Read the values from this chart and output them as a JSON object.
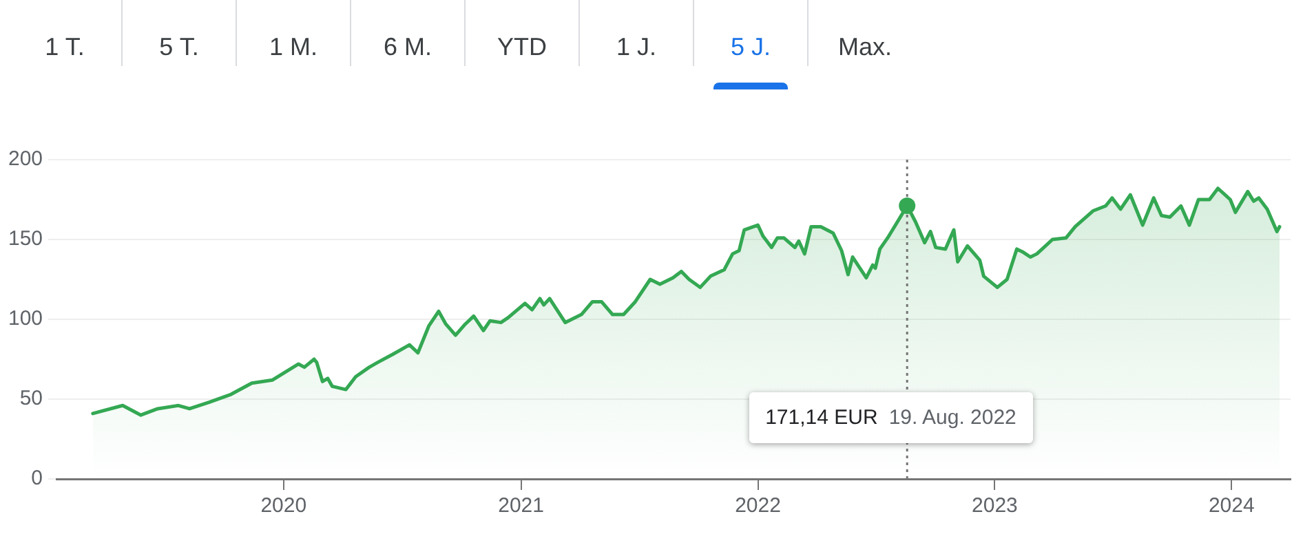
{
  "chart_data": {
    "type": "area",
    "x": [
      "2019-03-13",
      "2019-04-28",
      "2019-05-26",
      "2019-06-21",
      "2019-07-23",
      "2019-08-09",
      "2019-09-08",
      "2019-10-12",
      "2019-11-13",
      "2019-12-15",
      "2020-01-24",
      "2020-02-02",
      "2020-02-17",
      "2020-02-21",
      "2020-03-01",
      "2020-03-09",
      "2020-03-16",
      "2020-04-06",
      "2020-04-21",
      "2020-05-12",
      "2020-05-25",
      "2020-06-17",
      "2020-07-13",
      "2020-07-26",
      "2020-08-12",
      "2020-08-27",
      "2020-09-07",
      "2020-09-22",
      "2020-10-07",
      "2020-10-20",
      "2020-11-04",
      "2020-11-14",
      "2020-12-01",
      "2020-12-12",
      "2021-01-07",
      "2021-01-18",
      "2021-01-30",
      "2021-02-05",
      "2021-02-14",
      "2021-03-10",
      "2021-04-04",
      "2021-04-21",
      "2021-05-05",
      "2021-05-22",
      "2021-06-08",
      "2021-06-26",
      "2021-07-19",
      "2021-08-03",
      "2021-08-23",
      "2021-09-05",
      "2021-09-17",
      "2021-10-04",
      "2021-10-20",
      "2021-11-10",
      "2021-11-23",
      "2021-12-03",
      "2021-12-11",
      "2022-01-01",
      "2022-01-09",
      "2022-01-22",
      "2022-01-31",
      "2022-02-10",
      "2022-02-27",
      "2022-03-05",
      "2022-03-14",
      "2022-03-24",
      "2022-04-08",
      "2022-04-27",
      "2022-05-10",
      "2022-05-20",
      "2022-05-27",
      "2022-06-17",
      "2022-06-27",
      "2022-07-01",
      "2022-07-08",
      "2022-07-20",
      "2022-08-04",
      "2022-08-19",
      "2022-09-01",
      "2022-09-15",
      "2022-09-24",
      "2022-10-02",
      "2022-10-17",
      "2022-10-30",
      "2022-11-05",
      "2022-11-20",
      "2022-12-09",
      "2022-12-15",
      "2023-01-05",
      "2023-01-20",
      "2023-02-04",
      "2023-02-14",
      "2023-02-25",
      "2023-03-07",
      "2023-03-31",
      "2023-04-21",
      "2023-05-05",
      "2023-06-02",
      "2023-06-21",
      "2023-07-01",
      "2023-07-14",
      "2023-07-29",
      "2023-08-17",
      "2023-09-03",
      "2023-09-15",
      "2023-09-28",
      "2023-10-15",
      "2023-10-28",
      "2023-11-11",
      "2023-11-28",
      "2023-12-11",
      "2023-12-30",
      "2024-01-07",
      "2024-01-26",
      "2024-02-04",
      "2024-02-12",
      "2024-02-25",
      "2024-03-11",
      "2024-03-15"
    ],
    "series": [
      {
        "color": "#34a853",
        "values": [
          41,
          46,
          40,
          44,
          46,
          44,
          48,
          53,
          60,
          62,
          72,
          70,
          75,
          73,
          61,
          63,
          58,
          56,
          64,
          70,
          73,
          78,
          84,
          79,
          96,
          105,
          97,
          90,
          97,
          102,
          93,
          99,
          98,
          101,
          110,
          106,
          113,
          109,
          113,
          98,
          103,
          111,
          111,
          103,
          103,
          111,
          125,
          122,
          126,
          130,
          125,
          120,
          127,
          131,
          141,
          143,
          156,
          159,
          152,
          145,
          151,
          151,
          145,
          149,
          141,
          158,
          158,
          154,
          143,
          128,
          139,
          126,
          134,
          132,
          144,
          151,
          161,
          171.14,
          161,
          148,
          155,
          145,
          144,
          156,
          136,
          146,
          137,
          127,
          120,
          125,
          144,
          142,
          139,
          141,
          150,
          151,
          158,
          168,
          171,
          176,
          169,
          178,
          159,
          176,
          165,
          164,
          171,
          159,
          175,
          175,
          182,
          175,
          167,
          180,
          174,
          176,
          169,
          155,
          158
        ]
      }
    ],
    "xlim": [
      "2019-01-16",
      "2024-04-01"
    ],
    "xticks": [
      "2020",
      "2021",
      "2022",
      "2023",
      "2024"
    ],
    "ylim": [
      0,
      200
    ],
    "yticks": [
      0,
      50,
      100,
      150,
      200
    ],
    "grid": "y",
    "marker": "none",
    "ref_lines": [
      {
        "axis": "x",
        "value": "2022-08-19",
        "color": "#757575",
        "line_style": "dotted"
      }
    ],
    "annotations": [
      "1 T.",
      "5 T.",
      "1 M.",
      "6 M.",
      "YTD",
      "1 J.",
      "5 J.",
      "Max.",
      "171,14 EUR",
      "19. Aug. 2022"
    ]
  }
}
